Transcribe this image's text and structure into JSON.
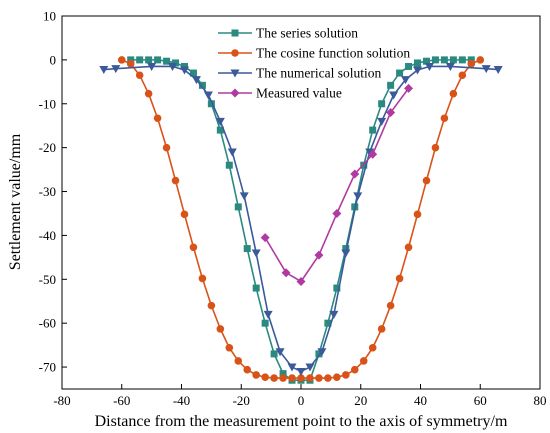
{
  "chart_data": {
    "type": "line",
    "title": "",
    "xlabel": "Distance from the measurement point to the axis of symmetry/m",
    "ylabel": "Settlement value/mm",
    "xlim": [
      -80,
      80
    ],
    "ylim": [
      -75,
      10
    ],
    "x_ticks": [
      -80,
      -60,
      -40,
      -20,
      0,
      20,
      40,
      60,
      80
    ],
    "y_ticks": [
      10,
      0,
      -10,
      -20,
      -30,
      -40,
      -50,
      -60,
      -70
    ],
    "grid": false,
    "legend_position": "top-center",
    "series": [
      {
        "name": "The series solution",
        "color": "#2a8a80",
        "marker": "square",
        "x": [
          -57,
          -54,
          -51,
          -48,
          -45,
          -42,
          -39,
          -36,
          -33,
          -30,
          -27,
          -24,
          -21,
          -18,
          -15,
          -12,
          -9,
          -6,
          -3,
          0,
          3,
          6,
          9,
          12,
          15,
          18,
          21,
          24,
          27,
          30,
          33,
          36,
          39,
          42,
          45,
          48,
          51,
          54,
          57
        ],
        "y": [
          0,
          0,
          0,
          0,
          -0.3,
          -0.7,
          -1.5,
          -3,
          -5.8,
          -10,
          -16,
          -24,
          -33.5,
          -43,
          -52,
          -60,
          -67,
          -71.5,
          -73,
          -73,
          -73,
          -67,
          -60,
          -52,
          -43,
          -33.5,
          -24,
          -16,
          -10,
          -5.8,
          -3,
          -1.5,
          -0.7,
          -0.3,
          0,
          0,
          0,
          0,
          0
        ]
      },
      {
        "name": "The cosine function solution",
        "color": "#d95319",
        "marker": "circle",
        "x": [
          -60,
          -57,
          -54,
          -51,
          -48,
          -45,
          -42,
          -39,
          -36,
          -33,
          -30,
          -27,
          -24,
          -21,
          -18,
          -15,
          -12,
          -9,
          -6,
          -3,
          0,
          3,
          6,
          9,
          12,
          15,
          18,
          21,
          24,
          27,
          30,
          33,
          36,
          39,
          42,
          45,
          48,
          51,
          54,
          57,
          60
        ],
        "y": [
          0,
          -0.9,
          -3.5,
          -7.7,
          -13.3,
          -20,
          -27.5,
          -35.2,
          -42.7,
          -49.8,
          -56,
          -61.3,
          -65.6,
          -68.6,
          -70.6,
          -71.8,
          -72.3,
          -72.5,
          -72.5,
          -72.5,
          -72.5,
          -72.5,
          -72.5,
          -72.5,
          -72.3,
          -71.8,
          -70.6,
          -68.6,
          -65.6,
          -61.3,
          -56,
          -49.8,
          -42.7,
          -35.2,
          -27.5,
          -20,
          -13.3,
          -7.7,
          -3.5,
          -0.9,
          0
        ]
      },
      {
        "name": "The numerical solution",
        "color": "#3a5a9a",
        "marker": "triangle-down",
        "x": [
          -66,
          -62,
          -50,
          -43,
          -39,
          -35,
          -31,
          -27,
          -23,
          -19,
          -15,
          -11,
          -7,
          -3,
          0,
          3,
          7,
          11,
          15,
          19,
          23,
          27,
          31,
          35,
          39,
          43,
          50,
          62,
          66
        ],
        "y": [
          -2.2,
          -2,
          -1.5,
          -1.5,
          -2.3,
          -4.5,
          -8,
          -14,
          -21,
          -31,
          -44,
          -58,
          -66.5,
          -70,
          -71,
          -70,
          -66.5,
          -58,
          -44,
          -31,
          -21,
          -14,
          -8,
          -4.5,
          -2.3,
          -1.5,
          -1.5,
          -2,
          -2.2
        ]
      },
      {
        "name": "Measured value",
        "color": "#b03aa0",
        "marker": "diamond",
        "x": [
          -12,
          -5,
          0,
          6,
          12,
          18,
          24,
          30,
          36
        ],
        "y": [
          -40.5,
          -48.5,
          -50.5,
          -44.5,
          -35,
          -26,
          -21.5,
          -12,
          -6.5
        ]
      }
    ]
  }
}
